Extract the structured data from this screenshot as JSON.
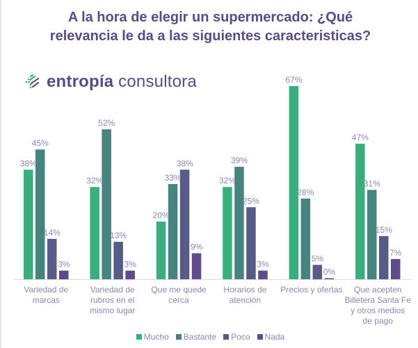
{
  "chart_data": {
    "type": "bar",
    "title": "A la hora de elegir un supermercado:  ¿Qué relevancia le da a las siguientes caracteristicas?",
    "title_lines": [
      "A la hora de elegir un supermercado:  ¿Qué",
      "relevancia le da a las siguientes caracteristicas?"
    ],
    "xlabel": "",
    "ylabel": "",
    "ylim": [
      0,
      70
    ],
    "grid": false,
    "legend_position": "bottom",
    "categories": [
      "Variedad de marcas",
      "Variedad de rubros en el mismo lugar",
      "Que me quede cerca",
      "Horarios de atención",
      "Precios y ofertas",
      "Que acepten Billetera Santa Fe y otros medios de pago"
    ],
    "category_lines": [
      [
        "Variedad de",
        "marcas"
      ],
      [
        "Variedad de",
        "rubros en el",
        "mismo lugar"
      ],
      [
        "Que me quede",
        "cerca"
      ],
      [
        "Horarios de",
        "atención"
      ],
      [
        "Precios y ofertas"
      ],
      [
        "Que acepten",
        "Billetera Santa Fe",
        "y otros medios",
        "de pago"
      ]
    ],
    "series": [
      {
        "name": "Mucho",
        "color": "#38b07e",
        "values": [
          38,
          32,
          20,
          32,
          67,
          47
        ]
      },
      {
        "name": "Bastante",
        "color": "#468480",
        "values": [
          45,
          52,
          33,
          39,
          28,
          31
        ]
      },
      {
        "name": "Poco",
        "color": "#575b88",
        "values": [
          14,
          13,
          38,
          25,
          5,
          15
        ]
      },
      {
        "name": "Nada",
        "color": "#5f4a8e",
        "values": [
          3,
          3,
          9,
          3,
          0,
          7
        ]
      }
    ],
    "value_suffix": "%"
  },
  "brand": {
    "name_bold": "entropía",
    "name_light": "consultora",
    "icon": "entropia-logo-icon",
    "color": "#5b4a8b"
  },
  "colors": {
    "title": "#5b4a8b",
    "labels": "#8f85b3",
    "axis": "#dcdae6"
  }
}
